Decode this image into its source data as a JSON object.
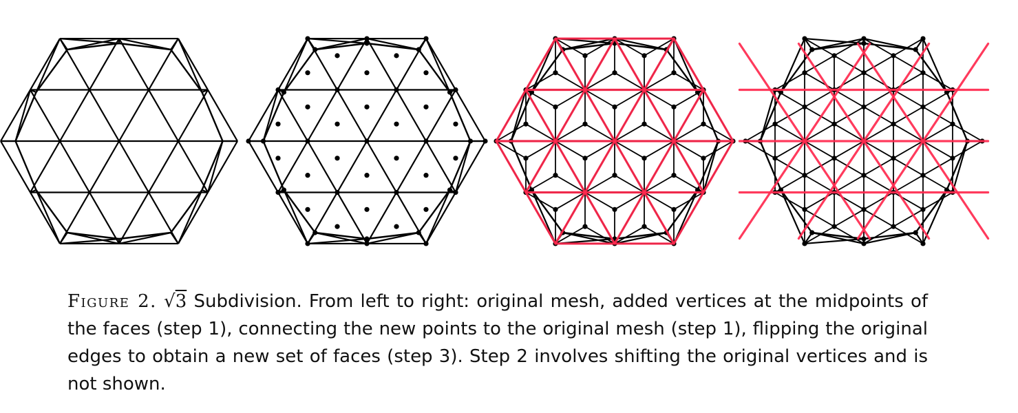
{
  "caption": {
    "label": "Figure 2.",
    "math": "3",
    "body": "Subdivision. From left to right: original mesh, added vertices at the midpoints of the faces (step 1), connecting the new points to the original mesh (step 1), flipping the original edges to obtain a new set of faces (step 3). Step 2 involves shifting the original vertices and is not shown."
  },
  "panels": [
    {
      "name": "original mesh"
    },
    {
      "name": "added face midpoints"
    },
    {
      "name": "connected midpoints"
    },
    {
      "name": "flipped edges"
    }
  ],
  "colors": {
    "ink": "#000000",
    "annotation": "#ff2a4f",
    "background": "#ffffff"
  }
}
